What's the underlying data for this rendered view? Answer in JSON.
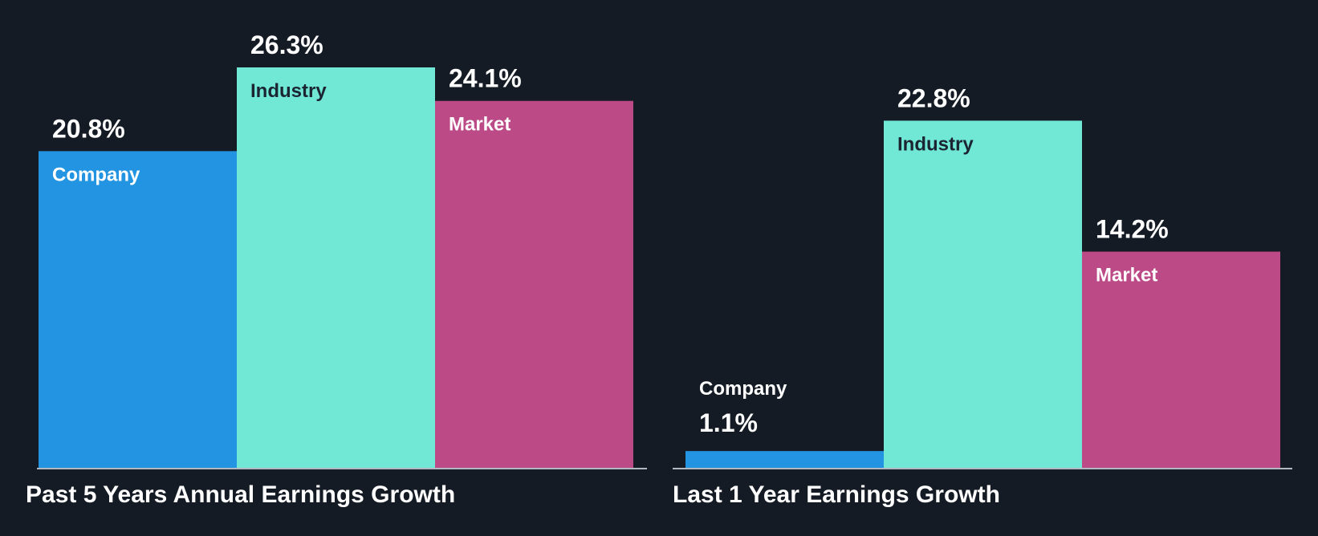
{
  "chart_data": [
    {
      "type": "bar",
      "title": "Past 5 Years Annual Earnings Growth",
      "categories": [
        "Company",
        "Industry",
        "Market"
      ],
      "values": [
        20.8,
        26.3,
        24.1
      ],
      "value_labels": [
        "20.8%",
        "26.3%",
        "24.1%"
      ],
      "ylim": [
        0,
        26.3
      ]
    },
    {
      "type": "bar",
      "title": "Last 1 Year Earnings Growth",
      "categories": [
        "Company",
        "Industry",
        "Market"
      ],
      "values": [
        1.1,
        22.8,
        14.2
      ],
      "value_labels": [
        "1.1%",
        "22.8%",
        "14.2%"
      ],
      "ylim": [
        0,
        26.3
      ]
    }
  ],
  "colors": {
    "background": "#151b24",
    "company": "#2394e1",
    "industry": "#71e7d6",
    "market": "#bb4a86",
    "label_on_light": "#1b2532",
    "label_on_dark": "#ffffff",
    "baseline": "#b3b8bf"
  }
}
